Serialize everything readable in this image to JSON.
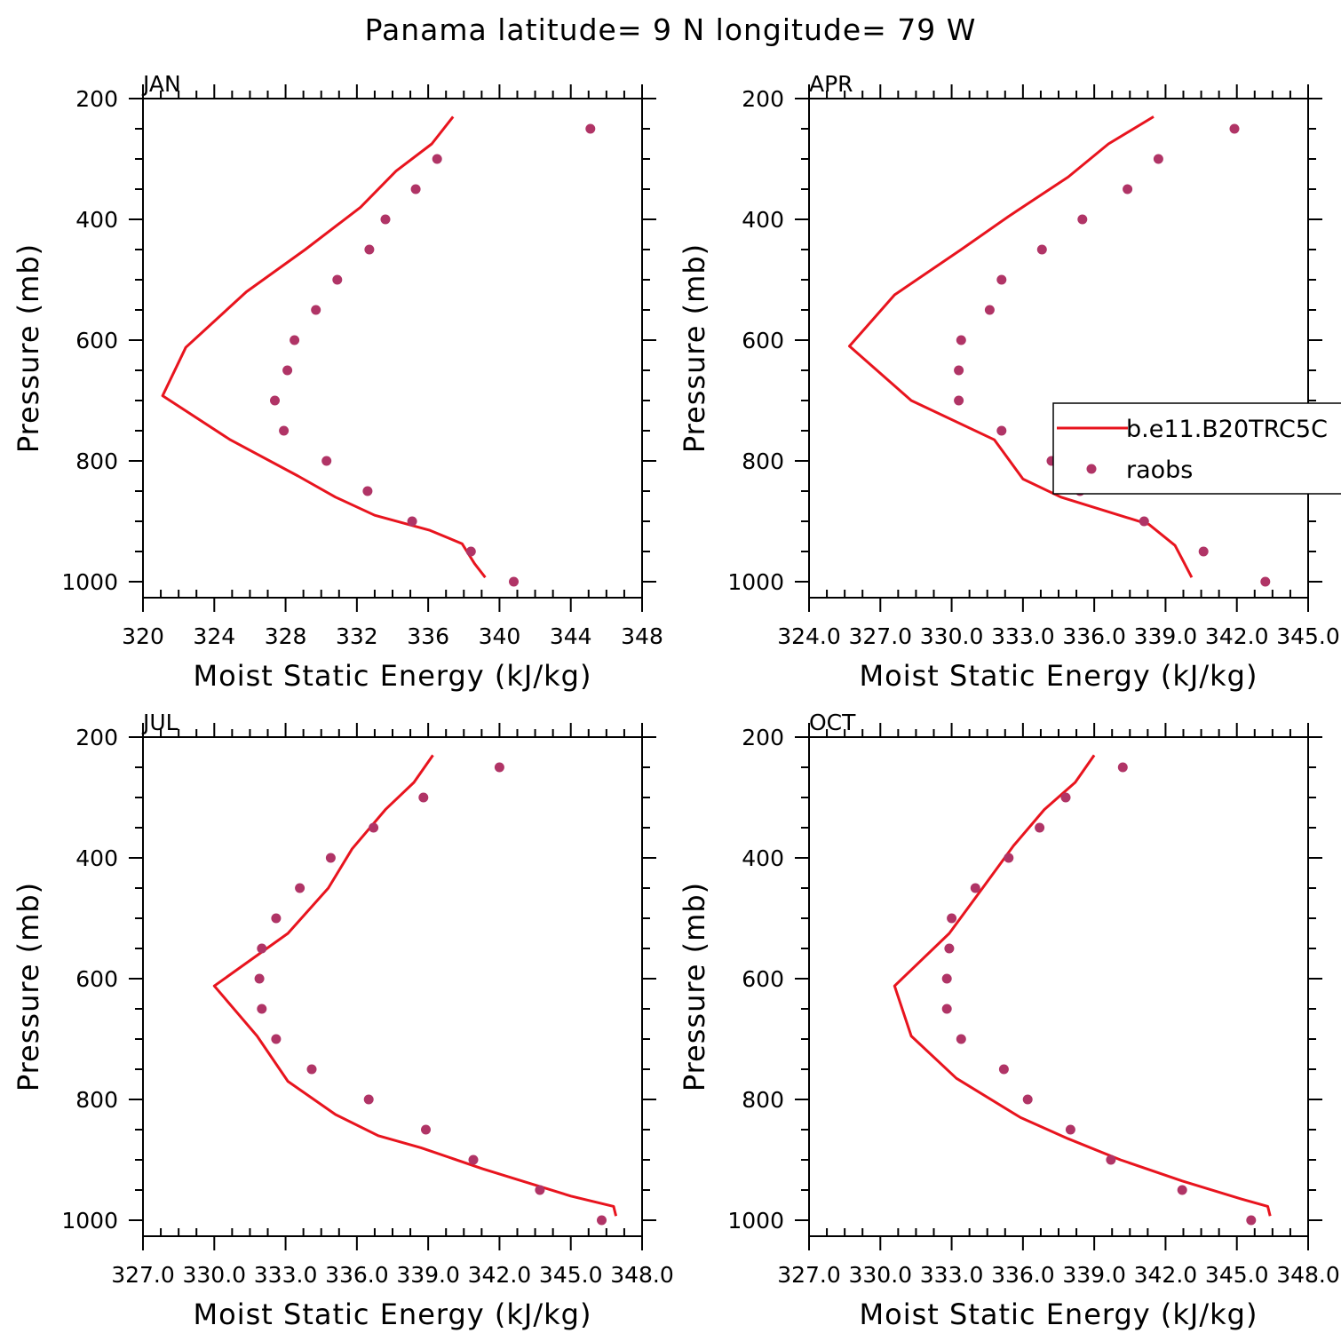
{
  "title": "Panama  latitude= 9 N longitude= 79 W",
  "colors": {
    "model_line": "#e8141e",
    "raobs_marker": "#b03466",
    "axis": "#000000"
  },
  "legend": {
    "model_label": "b.e11.B20TRC5C",
    "obs_label": "raobs"
  },
  "chart_data": [
    {
      "type": "line",
      "panel": "JAN",
      "xlabel": "Moist Static Energy (kJ/kg)",
      "ylabel": "Pressure (mb)",
      "xlim": [
        320,
        348
      ],
      "ylim": [
        1000,
        200
      ],
      "y_inverted": true,
      "xticks": [
        320,
        324,
        328,
        332,
        336,
        340,
        344,
        348
      ],
      "xtick_labels": [
        "320",
        "324",
        "328",
        "332",
        "336",
        "340",
        "344",
        "348"
      ],
      "yticks": [
        200,
        400,
        600,
        800,
        1000
      ],
      "ytick_labels": [
        "200",
        "400",
        "600",
        "800",
        "1000"
      ],
      "series": [
        {
          "name": "b.e11.B20TRC5C",
          "style": "line",
          "x": [
            339.2,
            338.6,
            337.9,
            336.1,
            333.0,
            330.8,
            328.7,
            324.9,
            321.1,
            322.4,
            325.8,
            329.1,
            332.2,
            334.2,
            336.2,
            337.4
          ],
          "y": [
            993,
            970,
            937,
            915,
            890,
            860,
            825,
            765,
            692,
            612,
            520,
            450,
            380,
            320,
            275,
            230
          ]
        },
        {
          "name": "raobs",
          "style": "markers",
          "x": [
            340.8,
            338.4,
            335.1,
            332.6,
            330.3,
            327.9,
            327.4,
            328.1,
            328.5,
            329.7,
            330.9,
            332.7,
            333.6,
            335.3,
            336.5,
            345.1
          ],
          "y": [
            1000,
            950,
            900,
            850,
            800,
            750,
            700,
            650,
            600,
            550,
            500,
            450,
            400,
            350,
            300,
            250
          ]
        }
      ]
    },
    {
      "type": "line",
      "panel": "APR",
      "xlabel": "Moist Static Energy (kJ/kg)",
      "ylabel": "",
      "xlim": [
        324.0,
        345.0
      ],
      "ylim": [
        1000,
        200
      ],
      "y_inverted": true,
      "xticks": [
        324.0,
        327.0,
        330.0,
        333.0,
        336.0,
        339.0,
        342.0,
        345.0
      ],
      "xtick_labels": [
        "324.0",
        "327.0",
        "330.0",
        "333.0",
        "336.0",
        "339.0",
        "342.0",
        "345.0"
      ],
      "yticks": [
        200,
        400,
        600,
        800,
        1000
      ],
      "ytick_labels": [
        "200",
        "400",
        "600",
        "800",
        "1000"
      ],
      "series": [
        {
          "name": "b.e11.B20TRC5C",
          "style": "line",
          "x": [
            340.1,
            339.8,
            339.4,
            338.3,
            334.6,
            333.0,
            331.8,
            328.3,
            325.7,
            327.6,
            330.4,
            332.4,
            334.9,
            336.6,
            338.5
          ],
          "y": [
            993,
            970,
            940,
            905,
            860,
            830,
            765,
            700,
            610,
            525,
            450,
            395,
            330,
            275,
            230
          ]
        },
        {
          "name": "raobs",
          "style": "markers",
          "x": [
            343.2,
            340.6,
            338.1,
            335.4,
            334.2,
            332.1,
            330.3,
            330.3,
            330.4,
            331.6,
            332.1,
            333.8,
            335.5,
            337.4,
            338.7,
            341.9
          ],
          "y": [
            1000,
            950,
            900,
            850,
            800,
            750,
            700,
            650,
            600,
            550,
            500,
            450,
            400,
            350,
            300,
            250
          ]
        }
      ]
    },
    {
      "type": "line",
      "panel": "JUL",
      "xlabel": "Moist Static Energy (kJ/kg)",
      "ylabel": "Pressure (mb)",
      "xlim": [
        327.0,
        348.0
      ],
      "ylim": [
        1000,
        200
      ],
      "y_inverted": true,
      "xticks": [
        327.0,
        330.0,
        333.0,
        336.0,
        339.0,
        342.0,
        345.0,
        348.0
      ],
      "xtick_labels": [
        "327.0",
        "330.0",
        "333.0",
        "336.0",
        "339.0",
        "342.0",
        "345.0",
        "348.0"
      ],
      "yticks": [
        200,
        400,
        600,
        800,
        1000
      ],
      "ytick_labels": [
        "200",
        "400",
        "600",
        "800",
        "1000"
      ],
      "series": [
        {
          "name": "b.e11.B20TRC5C",
          "style": "line",
          "x": [
            346.9,
            346.8,
            345.0,
            341.3,
            338.7,
            336.9,
            335.1,
            333.1,
            331.8,
            330.0,
            333.1,
            334.8,
            335.8,
            337.2,
            338.4,
            339.2
          ],
          "y": [
            993,
            977,
            960,
            915,
            880,
            860,
            825,
            770,
            695,
            612,
            525,
            450,
            385,
            320,
            275,
            230
          ]
        },
        {
          "name": "raobs",
          "style": "markers",
          "x": [
            346.3,
            343.7,
            340.9,
            338.9,
            336.5,
            334.1,
            332.6,
            332.0,
            331.9,
            332.0,
            332.6,
            333.6,
            334.9,
            336.7,
            338.8,
            342.0
          ],
          "y": [
            1000,
            950,
            900,
            850,
            800,
            750,
            700,
            650,
            600,
            550,
            500,
            450,
            400,
            350,
            300,
            250
          ]
        }
      ]
    },
    {
      "type": "line",
      "panel": "OCT",
      "xlabel": "Moist Static Energy (kJ/kg)",
      "ylabel": "",
      "xlim": [
        327.0,
        348.0
      ],
      "ylim": [
        1000,
        200
      ],
      "y_inverted": true,
      "xticks": [
        327.0,
        330.0,
        333.0,
        336.0,
        339.0,
        342.0,
        345.0,
        348.0
      ],
      "xtick_labels": [
        "327.0",
        "330.0",
        "333.0",
        "336.0",
        "339.0",
        "342.0",
        "345.0",
        "348.0"
      ],
      "yticks": [
        200,
        400,
        600,
        800,
        1000
      ],
      "ytick_labels": [
        "200",
        "400",
        "600",
        "800",
        "1000"
      ],
      "series": [
        {
          "name": "b.e11.B20TRC5C",
          "style": "line",
          "x": [
            346.4,
            346.3,
            345.2,
            342.7,
            340.1,
            337.9,
            335.9,
            333.2,
            331.3,
            330.6,
            332.9,
            334.3,
            335.6,
            336.9,
            338.2,
            339.0
          ],
          "y": [
            993,
            977,
            965,
            935,
            900,
            865,
            830,
            765,
            695,
            612,
            525,
            450,
            380,
            320,
            275,
            230
          ]
        },
        {
          "name": "raobs",
          "style": "markers",
          "x": [
            345.6,
            342.7,
            339.7,
            338.0,
            336.2,
            335.2,
            333.4,
            332.8,
            332.8,
            332.9,
            333.0,
            334.0,
            335.4,
            336.7,
            337.8,
            340.2
          ],
          "y": [
            1000,
            950,
            900,
            850,
            800,
            750,
            700,
            650,
            600,
            550,
            500,
            450,
            400,
            350,
            300,
            250
          ]
        }
      ]
    }
  ]
}
